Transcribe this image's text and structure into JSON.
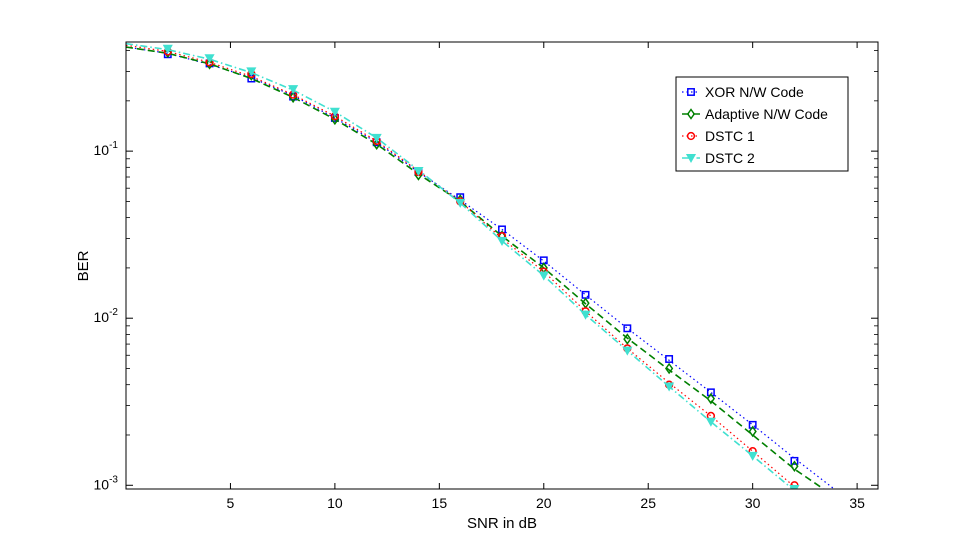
{
  "chart_data": {
    "type": "line",
    "title": "",
    "xlabel": "SNR in dB",
    "ylabel": "BER",
    "xlim": [
      0,
      36
    ],
    "ylim": [
      0.00095,
      0.45
    ],
    "yscale": "log",
    "grid": false,
    "legend_position": "top-right",
    "xticks": [
      5,
      10,
      15,
      20,
      25,
      30,
      35
    ],
    "yticks": [
      {
        "value": 0.1,
        "base": "10",
        "exp": "-1"
      },
      {
        "value": 0.01,
        "base": "10",
        "exp": "-2"
      },
      {
        "value": 0.001,
        "base": "10",
        "exp": "-3"
      }
    ],
    "series": [
      {
        "name": "XOR N/W Code",
        "color": "#0000ff",
        "marker": "square",
        "line_style": "dotted",
        "curve": {
          "x": [
            0,
            2,
            4,
            6,
            8,
            10,
            12,
            14,
            16,
            18,
            20,
            22,
            24,
            26,
            28,
            30,
            32,
            34
          ],
          "y": [
            0.42,
            0.385,
            0.33,
            0.275,
            0.215,
            0.158,
            0.113,
            0.075,
            0.051,
            0.034,
            0.022,
            0.0138,
            0.0087,
            0.0056,
            0.0036,
            0.0023,
            0.00145,
            0.00093
          ]
        },
        "markers": {
          "x": [
            2,
            4,
            6,
            8,
            10,
            12,
            14,
            16,
            18,
            20,
            22,
            24,
            26,
            28,
            30,
            32
          ],
          "y": [
            0.38,
            0.335,
            0.272,
            0.212,
            0.158,
            0.113,
            0.075,
            0.053,
            0.034,
            0.0222,
            0.0138,
            0.0087,
            0.0057,
            0.0036,
            0.0023,
            0.0014
          ]
        }
      },
      {
        "name": "Adaptive N/W Code",
        "color": "#008000",
        "marker": "diamond",
        "line_style": "dashed",
        "curve": {
          "x": [
            0,
            2,
            4,
            6,
            8,
            10,
            12,
            14,
            16,
            18,
            20,
            22,
            24,
            26,
            28,
            30,
            32,
            33.5
          ],
          "y": [
            0.42,
            0.385,
            0.333,
            0.272,
            0.21,
            0.155,
            0.11,
            0.073,
            0.05,
            0.031,
            0.02,
            0.0122,
            0.0076,
            0.0049,
            0.0032,
            0.002,
            0.00125,
            0.00093
          ]
        },
        "markers": {
          "x": [
            2,
            4,
            6,
            8,
            10,
            12,
            14,
            16,
            18,
            20,
            22,
            24,
            26,
            28,
            30,
            32
          ],
          "y": [
            0.39,
            0.333,
            0.285,
            0.21,
            0.155,
            0.11,
            0.072,
            0.051,
            0.031,
            0.02,
            0.0123,
            0.0075,
            0.005,
            0.0033,
            0.0021,
            0.0013
          ]
        }
      },
      {
        "name": "DSTC 1",
        "color": "#ff0000",
        "marker": "circle",
        "line_style": "dotted",
        "curve": {
          "x": [
            0,
            2,
            4,
            6,
            8,
            10,
            12,
            14,
            16,
            18,
            20,
            22,
            24,
            26,
            28,
            30,
            32
          ],
          "y": [
            0.43,
            0.395,
            0.34,
            0.28,
            0.218,
            0.162,
            0.115,
            0.076,
            0.05,
            0.03,
            0.019,
            0.011,
            0.0066,
            0.0041,
            0.0026,
            0.0016,
            0.00098
          ]
        },
        "markers": {
          "x": [
            2,
            4,
            6,
            8,
            10,
            12,
            14,
            16,
            18,
            20,
            22,
            24,
            26,
            28,
            30,
            32
          ],
          "y": [
            0.395,
            0.34,
            0.29,
            0.218,
            0.162,
            0.115,
            0.075,
            0.05,
            0.031,
            0.019,
            0.011,
            0.0066,
            0.004,
            0.0026,
            0.0016,
            0.001
          ]
        }
      },
      {
        "name": "DSTC 2",
        "color": "#40e0d0",
        "marker": "triangle-down",
        "line_style": "dashdot",
        "curve": {
          "x": [
            0,
            2,
            4,
            6,
            8,
            10,
            12,
            14,
            16,
            18,
            20,
            22,
            24,
            26,
            28,
            30,
            32
          ],
          "y": [
            0.44,
            0.405,
            0.355,
            0.295,
            0.232,
            0.172,
            0.12,
            0.077,
            0.049,
            0.029,
            0.018,
            0.0105,
            0.0064,
            0.0039,
            0.0024,
            0.0015,
            0.00093
          ]
        },
        "markers": {
          "x": [
            2,
            4,
            6,
            8,
            10,
            12,
            14,
            16,
            18,
            20,
            22,
            24,
            26,
            28,
            30,
            32
          ],
          "y": [
            0.41,
            0.36,
            0.3,
            0.235,
            0.172,
            0.12,
            0.076,
            0.049,
            0.029,
            0.018,
            0.0105,
            0.0064,
            0.0039,
            0.0024,
            0.0015,
            0.00095
          ]
        }
      }
    ]
  }
}
